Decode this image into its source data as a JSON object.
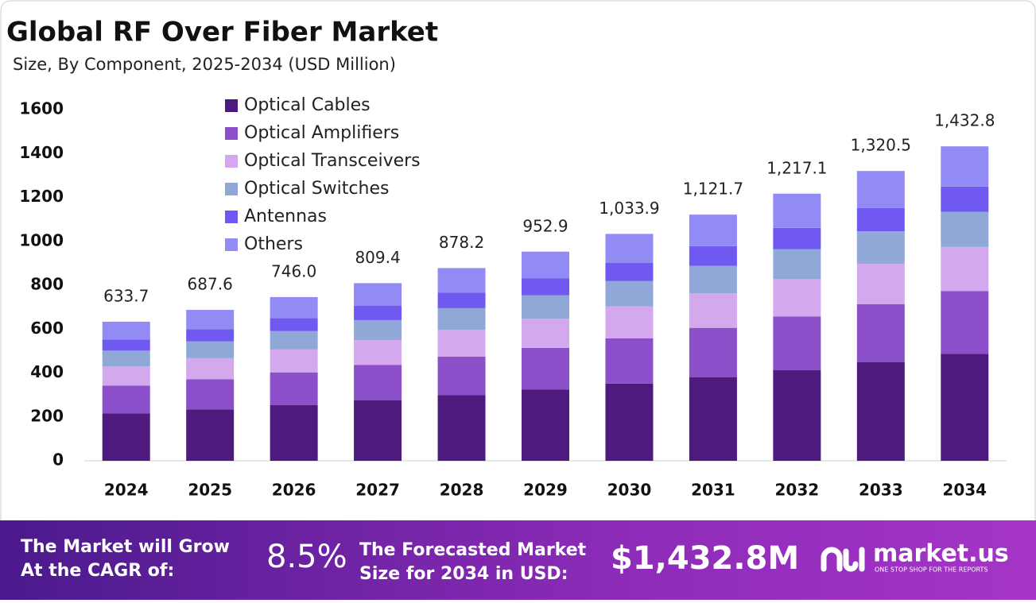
{
  "chart_data": {
    "type": "stacked-bar",
    "title": "Global RF Over Fiber Market",
    "subtitle": "Size, By Component, 2025-2034 (USD Million)",
    "categories": [
      "2024",
      "2025",
      "2026",
      "2027",
      "2028",
      "2029",
      "2030",
      "2031",
      "2032",
      "2033",
      "2034"
    ],
    "series": [
      {
        "name": "Optical Cables",
        "color": "#4e1a7e",
        "values": [
          215.5,
          233.8,
          253.6,
          275.2,
          298.6,
          324.0,
          351.5,
          381.4,
          413.8,
          449.0,
          487.2
        ]
      },
      {
        "name": "Optical Amplifiers",
        "color": "#8b4fc9",
        "values": [
          126.7,
          137.5,
          149.2,
          161.9,
          175.6,
          190.6,
          206.8,
          224.3,
          243.4,
          264.1,
          286.6
        ]
      },
      {
        "name": "Optical Transceivers",
        "color": "#d4a8ec",
        "values": [
          88.7,
          96.3,
          104.4,
          113.3,
          122.9,
          133.4,
          144.7,
          157.0,
          170.4,
          184.9,
          200.6
        ]
      },
      {
        "name": "Optical Switches",
        "color": "#8fa8d8",
        "values": [
          71.0,
          77.0,
          83.6,
          90.7,
          98.4,
          106.7,
          115.8,
          125.6,
          136.3,
          147.9,
          160.5
        ]
      },
      {
        "name": "Antennas",
        "color": "#7059f0",
        "values": [
          50.7,
          55.0,
          59.7,
          64.8,
          70.3,
          76.2,
          82.7,
          89.7,
          97.4,
          105.6,
          114.6
        ]
      },
      {
        "name": "Others",
        "color": "#928bf6",
        "values": [
          81.1,
          88.0,
          95.5,
          103.5,
          112.4,
          122.0,
          132.4,
          143.7,
          155.8,
          169.0,
          183.3
        ]
      }
    ],
    "totals": [
      633.7,
      687.6,
      746.0,
      809.4,
      878.2,
      952.9,
      1033.9,
      1121.7,
      1217.1,
      1320.5,
      1432.8
    ],
    "total_labels": [
      "633.7",
      "687.6",
      "746.0",
      "809.4",
      "878.2",
      "952.9",
      "1,033.9",
      "1,121.7",
      "1,217.1",
      "1,320.5",
      "1,432.8"
    ],
    "ylim": [
      0,
      1600
    ],
    "yticks": [
      0,
      200,
      400,
      600,
      800,
      1000,
      1200,
      1400,
      1600
    ],
    "grid": false,
    "legend": "top-left"
  },
  "footer": {
    "cagr_text": [
      "The Market will Grow",
      "At the CAGR of:"
    ],
    "cagr_value": "8.5%",
    "forecast_text": [
      "The Forecasted Market",
      "Size for 2034 in USD:"
    ],
    "forecast_value": "$1,432.8M",
    "brand": "market.us",
    "tagline": "ONE STOP SHOP FOR THE REPORTS"
  }
}
